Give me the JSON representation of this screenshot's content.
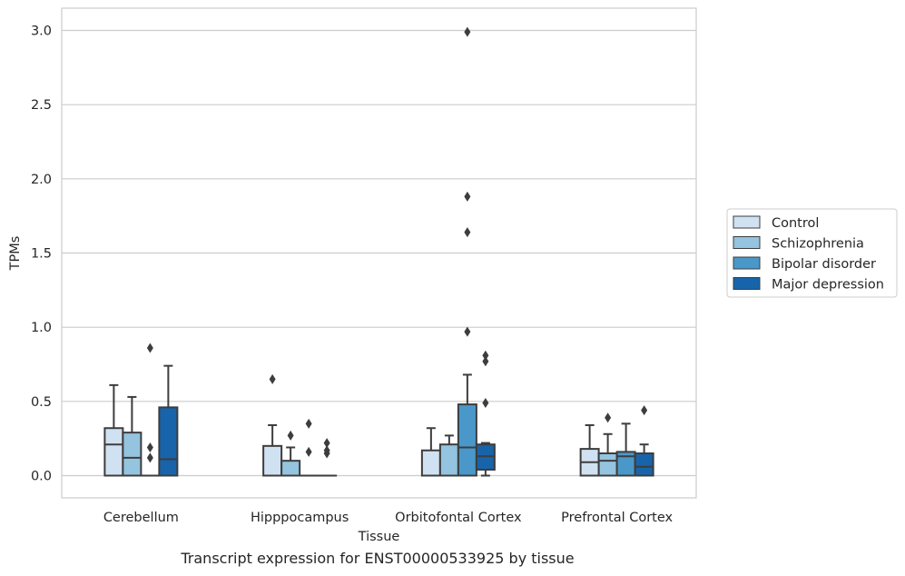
{
  "chart_data": {
    "type": "box",
    "xlabel": "Tissue",
    "ylabel": "TPMs",
    "ylim": [
      -0.15,
      3.15
    ],
    "yticks": [
      0.0,
      0.5,
      1.0,
      1.5,
      2.0,
      2.5,
      3.0
    ],
    "ytick_labels": [
      "0.0",
      "0.5",
      "1.0",
      "1.5",
      "2.0",
      "2.5",
      "3.0"
    ],
    "grid": "horizontal",
    "legend_position": "center-right",
    "categories": [
      "Cerebellum",
      "Hipppocampus",
      "Orbitofontal Cortex",
      "Prefrontal Cortex"
    ],
    "series": [
      {
        "name": "Control",
        "color": "#d0e1f2",
        "boxes": [
          {
            "whislo": 0.0,
            "q1": 0.0,
            "med": 0.21,
            "q3": 0.32,
            "whishi": 0.61,
            "fliers": []
          },
          {
            "whislo": 0.0,
            "q1": 0.0,
            "med": 0.0,
            "q3": 0.2,
            "whishi": 0.34,
            "fliers": [
              0.65
            ]
          },
          {
            "whislo": 0.0,
            "q1": 0.0,
            "med": 0.0,
            "q3": 0.17,
            "whishi": 0.32,
            "fliers": []
          },
          {
            "whislo": 0.0,
            "q1": 0.0,
            "med": 0.09,
            "q3": 0.18,
            "whishi": 0.34,
            "fliers": []
          }
        ]
      },
      {
        "name": "Schizophrenia",
        "color": "#94c4df",
        "boxes": [
          {
            "whislo": 0.0,
            "q1": 0.0,
            "med": 0.12,
            "q3": 0.29,
            "whishi": 0.53,
            "fliers": []
          },
          {
            "whislo": 0.0,
            "q1": 0.0,
            "med": 0.0,
            "q3": 0.1,
            "whishi": 0.19,
            "fliers": [
              0.27
            ]
          },
          {
            "whislo": 0.0,
            "q1": 0.0,
            "med": 0.0,
            "q3": 0.21,
            "whishi": 0.27,
            "fliers": []
          },
          {
            "whislo": 0.0,
            "q1": 0.0,
            "med": 0.1,
            "q3": 0.15,
            "whishi": 0.28,
            "fliers": [
              0.39
            ]
          }
        ]
      },
      {
        "name": "Bipolar disorder",
        "color": "#4a98c9",
        "boxes": [
          {
            "whislo": 0.0,
            "q1": 0.0,
            "med": 0.0,
            "q3": 0.0,
            "whishi": 0.0,
            "fliers": [
              0.12,
              0.19,
              0.86
            ]
          },
          {
            "whislo": 0.0,
            "q1": 0.0,
            "med": 0.0,
            "q3": 0.0,
            "whishi": 0.0,
            "fliers": [
              0.16,
              0.35
            ]
          },
          {
            "whislo": 0.0,
            "q1": 0.0,
            "med": 0.19,
            "q3": 0.48,
            "whishi": 0.68,
            "fliers": [
              0.97,
              1.64,
              1.88,
              2.99
            ]
          },
          {
            "whislo": 0.0,
            "q1": 0.0,
            "med": 0.13,
            "q3": 0.16,
            "whishi": 0.35,
            "fliers": []
          }
        ]
      },
      {
        "name": "Major depression",
        "color": "#1764ab",
        "boxes": [
          {
            "whislo": 0.0,
            "q1": 0.0,
            "med": 0.11,
            "q3": 0.46,
            "whishi": 0.74,
            "fliers": []
          },
          {
            "whislo": 0.0,
            "q1": 0.0,
            "med": 0.0,
            "q3": 0.0,
            "whishi": 0.0,
            "fliers": [
              0.15,
              0.17,
              0.22
            ]
          },
          {
            "whislo": 0.0,
            "q1": 0.04,
            "med": 0.13,
            "q3": 0.21,
            "whishi": 0.22,
            "fliers": [
              0.49,
              0.77,
              0.81
            ]
          },
          {
            "whislo": 0.0,
            "q1": 0.0,
            "med": 0.06,
            "q3": 0.15,
            "whishi": 0.21,
            "fliers": [
              0.44
            ]
          }
        ]
      }
    ],
    "caption": "Transcript expression for ENST00000533925 by tissue"
  }
}
